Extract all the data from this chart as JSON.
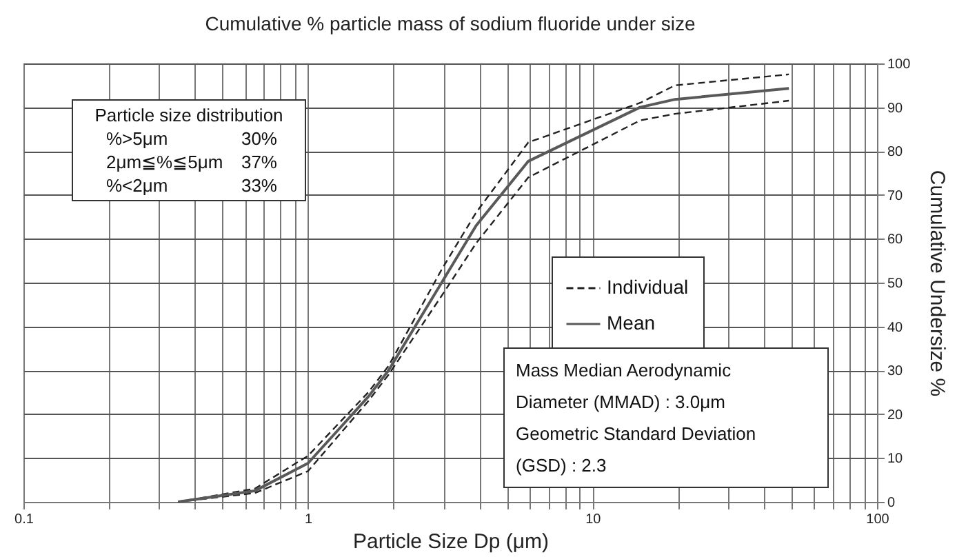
{
  "chart_data": {
    "type": "line",
    "title": "Cumulative % particle mass of sodium fluoride under size",
    "xlabel": "Particle Size Dp (μm)",
    "ylabel": "Cumulative Undersize %",
    "x": [
      0.35,
      0.65,
      1.0,
      1.63,
      1.92,
      2.95,
      3.9,
      5.95,
      14.7,
      19.5,
      49
    ],
    "series": [
      {
        "name": "Individual",
        "color": "#222222",
        "line_style": "dashed",
        "values": [
          0,
          3,
          10.5,
          25,
          31,
          53,
          66,
          82,
          91,
          95,
          97.5
        ]
      },
      {
        "color": "#222222",
        "line_style": "dashed",
        "values": [
          0,
          2,
          7,
          23,
          29,
          47,
          59,
          74,
          87,
          88.5,
          91.5
        ]
      },
      {
        "name": "Mean",
        "color": "#595959",
        "line_style": "solid",
        "values": [
          0,
          2.5,
          8.8,
          24,
          30,
          50,
          63,
          77.7,
          90,
          91.8,
          94.3
        ]
      }
    ],
    "log": "x",
    "xlim": [
      0.1,
      100
    ],
    "xticks": [
      0.1,
      {
        "value": 0.2,
        "label": null
      },
      {
        "value": 0.3,
        "label": null
      },
      {
        "value": 0.4,
        "label": null
      },
      {
        "value": 0.5,
        "label": null
      },
      {
        "value": 0.6,
        "label": null
      },
      {
        "value": 0.7,
        "label": null
      },
      {
        "value": 0.8,
        "label": null
      },
      {
        "value": 0.9,
        "label": null
      },
      1,
      {
        "value": 2,
        "label": null
      },
      {
        "value": 3,
        "label": null
      },
      {
        "value": 4,
        "label": null
      },
      {
        "value": 5,
        "label": null
      },
      {
        "value": 6,
        "label": null
      },
      {
        "value": 7,
        "label": null
      },
      {
        "value": 8,
        "label": null
      },
      {
        "value": 9,
        "label": null
      },
      10,
      {
        "value": 20,
        "label": null
      },
      {
        "value": 30,
        "label": null
      },
      {
        "value": 40,
        "label": null
      },
      {
        "value": 50,
        "label": null
      },
      {
        "value": 60,
        "label": null
      },
      {
        "value": 70,
        "label": null
      },
      {
        "value": 80,
        "label": null
      },
      {
        "value": 90,
        "label": null
      },
      100
    ],
    "ylim": [
      0,
      100
    ],
    "yticks": [
      0,
      10,
      20,
      30,
      40,
      50,
      60,
      70,
      80,
      90,
      100
    ],
    "grid": true,
    "legend": "right",
    "marker": "none",
    "annotations": [
      "Particle size distribution",
      "%>5μm",
      "30%",
      "2μm≦%≦5μm",
      "37%",
      "%<2μm",
      "33%",
      "Mass Median Aerodynamic",
      "Diameter (MMAD) : 3.0μm",
      "Geometric Standard Deviation",
      "(GSD) : 2.3"
    ]
  }
}
